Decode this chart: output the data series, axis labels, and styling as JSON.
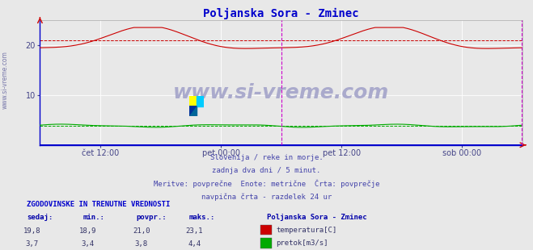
{
  "title": "Poljanska Sora - Zminec",
  "title_color": "#0000cc",
  "bg_color": "#e8e8e8",
  "plot_bg_color": "#e8e8e8",
  "grid_color": "#ffffff",
  "xlabel_ticks": [
    "čet 12:00",
    "pet 00:00",
    "pet 12:00",
    "sob 00:00"
  ],
  "xlabel_tick_positions": [
    0.125,
    0.375,
    0.625,
    0.875
  ],
  "ylim": [
    0,
    25
  ],
  "yticks": [
    10,
    20
  ],
  "temp_color": "#cc0000",
  "flow_color": "#00aa00",
  "level_color": "#0000cc",
  "avg_temp_color": "#cc0000",
  "avg_flow_color": "#00aa00",
  "vline_color": "#cc00cc",
  "vline_positions": [
    0.5,
    1.0
  ],
  "avg_temp": 21.0,
  "avg_flow": 3.8,
  "subtitle_lines": [
    "Slovenija / reke in morje.",
    "zadnja dva dni / 5 minut.",
    "Meritve: povrpečne  Enote: metrične  Črta: povrpečje",
    "navpična črta - razdelek 24 ur"
  ],
  "subtitle_color": "#4444aa",
  "table_title": "ZGODOVINSKE IN TRENUTNE VREDNOSTI",
  "table_title_color": "#0000cc",
  "col_headers": [
    "sedaj:",
    "min.:",
    "povpr.:",
    "maks.:"
  ],
  "col_header_color": "#0000aa",
  "row1": [
    "19,8",
    "18,9",
    "21,0",
    "23,1"
  ],
  "row2": [
    "3,7",
    "3,4",
    "3,8",
    "4,4"
  ],
  "legend_title": "Poljanska Sora - Zminec",
  "legend_color": "#0000aa",
  "legend_entries": [
    "temperatura[C]",
    "pretok[m3/s]"
  ],
  "legend_colors": [
    "#cc0000",
    "#00aa00"
  ],
  "watermark": "www.si-vreme.com",
  "watermark_color": "#aaaacc",
  "side_text": "www.si-vreme.com",
  "side_text_color": "#7777aa"
}
